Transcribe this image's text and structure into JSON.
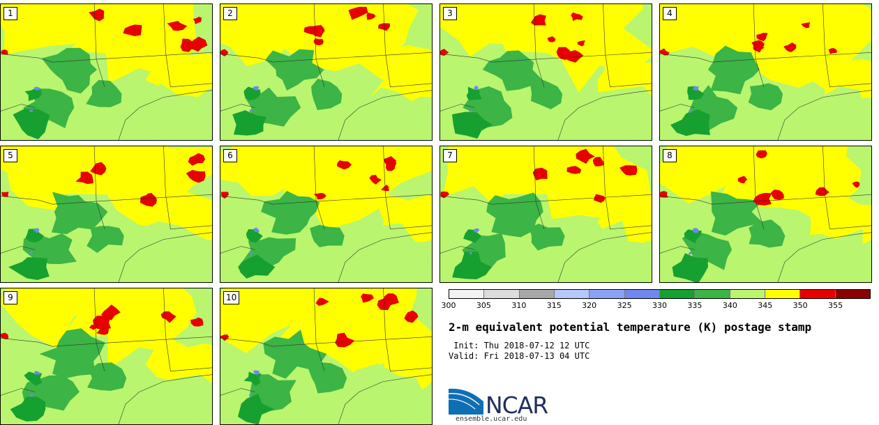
{
  "panels": [
    {
      "label": "1"
    },
    {
      "label": "2"
    },
    {
      "label": "3"
    },
    {
      "label": "4"
    },
    {
      "label": "5"
    },
    {
      "label": "6"
    },
    {
      "label": "7"
    },
    {
      "label": "8"
    },
    {
      "label": "9"
    },
    {
      "label": "10"
    }
  ],
  "colorbar": {
    "colors": [
      "#f2f2f2",
      "#dcdcdc",
      "#a8a8a8",
      "#b4c8fa",
      "#8aa2f5",
      "#6e88ef",
      "#16a030",
      "#3cb446",
      "#b9f56e",
      "#ffff00",
      "#e60000",
      "#8b0000"
    ],
    "ticks": [
      "300",
      "305",
      "310",
      "315",
      "320",
      "325",
      "330",
      "335",
      "340",
      "345",
      "350",
      "355"
    ]
  },
  "title": "2-m equivalent potential temperature (K) postage stamp",
  "init_label": " Init: Thu 2018-07-12 12 UTC",
  "valid_label": "Valid: Fri 2018-07-13 04 UTC",
  "logo": {
    "name": "NCAR",
    "website": "ensemble.ucar.edu"
  }
}
